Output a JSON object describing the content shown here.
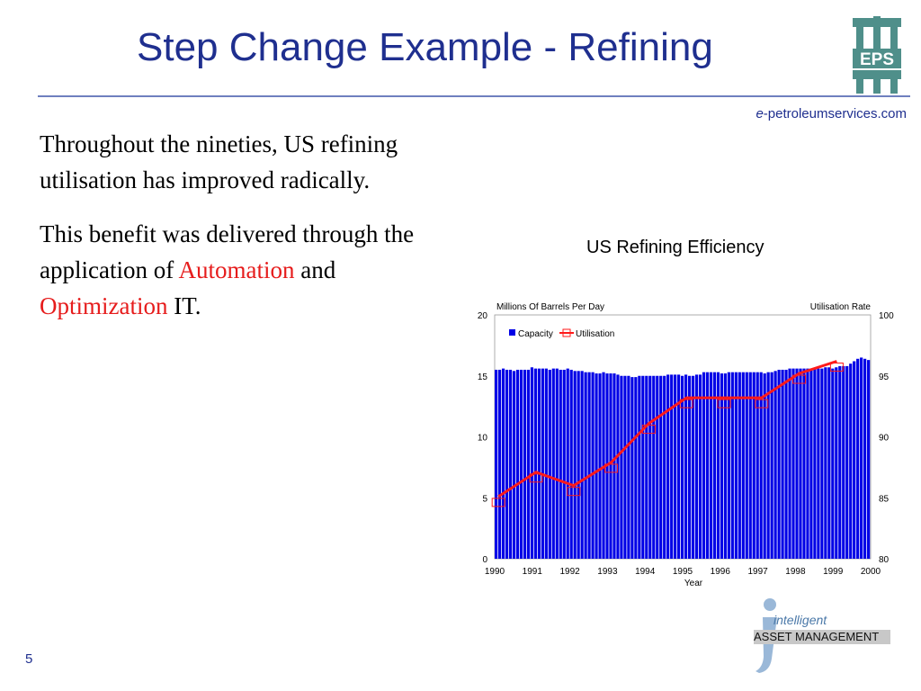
{
  "slide": {
    "title": "Step Change Example - Refining",
    "site_prefix": "e",
    "site_suffix": "-petroleumservices.com",
    "paragraph1": "Throughout the nineties, US refining utilisation has improved radically.",
    "p2_start": "This benefit was delivered through the application of",
    "p2_word1": "Automation",
    "p2_and": "and",
    "p2_word2": "Optimization",
    "p2_end": "IT.",
    "page_number": "5",
    "logo_text": "EPS",
    "iam_line1": "intelligent",
    "iam_line2": "ASSET MANAGEMENT"
  },
  "chart_data": {
    "type": "bar",
    "title": "US Refining Efficiency",
    "xlabel": "Year",
    "ylabel_left": "Millions Of Barrels Per Day",
    "ylabel_right": "Utilisation Rate",
    "ylim_left": [
      0,
      20
    ],
    "ylim_right": [
      80,
      100
    ],
    "yticks_left": [
      "0",
      "5",
      "10",
      "15",
      "20"
    ],
    "yticks_right": [
      "80",
      "85",
      "90",
      "95",
      "100"
    ],
    "xticks": [
      "1990",
      "1991",
      "1992",
      "1993",
      "1994",
      "1995",
      "1996",
      "1997",
      "1998",
      "1999",
      "2000"
    ],
    "legend": [
      "Capacity",
      "Utilisation"
    ],
    "legend_position": "top-left",
    "colors": {
      "capacity": "#0000e6",
      "utilisation": "#ff1a1a"
    },
    "series": [
      {
        "name": "Capacity",
        "values": [
          15.5,
          15.5,
          15.6,
          15.5,
          15.5,
          15.4,
          15.5,
          15.5,
          15.5,
          15.5,
          15.7,
          15.6,
          15.6,
          15.6,
          15.6,
          15.5,
          15.6,
          15.6,
          15.5,
          15.5,
          15.6,
          15.5,
          15.4,
          15.4,
          15.4,
          15.3,
          15.3,
          15.3,
          15.2,
          15.2,
          15.3,
          15.2,
          15.2,
          15.2,
          15.1,
          15.0,
          15.0,
          15.0,
          14.9,
          14.9,
          15.0,
          15.0,
          15.0,
          15.0,
          15.0,
          15.0,
          15.0,
          15.0,
          15.1,
          15.1,
          15.1,
          15.1,
          15.0,
          15.1,
          15.0,
          15.0,
          15.1,
          15.1,
          15.3,
          15.3,
          15.3,
          15.3,
          15.3,
          15.2,
          15.2,
          15.3,
          15.3,
          15.3,
          15.3,
          15.3,
          15.3,
          15.3,
          15.3,
          15.3,
          15.3,
          15.2,
          15.3,
          15.3,
          15.4,
          15.5,
          15.5,
          15.5,
          15.6,
          15.6,
          15.6,
          15.6,
          15.6,
          15.6,
          15.6,
          15.6,
          15.6,
          15.6,
          15.7,
          15.7,
          15.6,
          15.7,
          15.8,
          15.8,
          15.8,
          16.0,
          16.2,
          16.4,
          16.5,
          16.4,
          16.3
        ]
      },
      {
        "name": "Utilisation",
        "x": [
          1990,
          1991,
          1992,
          1993,
          1994,
          1995,
          1996,
          1997,
          1998,
          1999
        ],
        "values": [
          85.1,
          87.1,
          86.0,
          87.9,
          91.1,
          93.2,
          93.2,
          93.2,
          95.2,
          96.2
        ]
      }
    ]
  }
}
